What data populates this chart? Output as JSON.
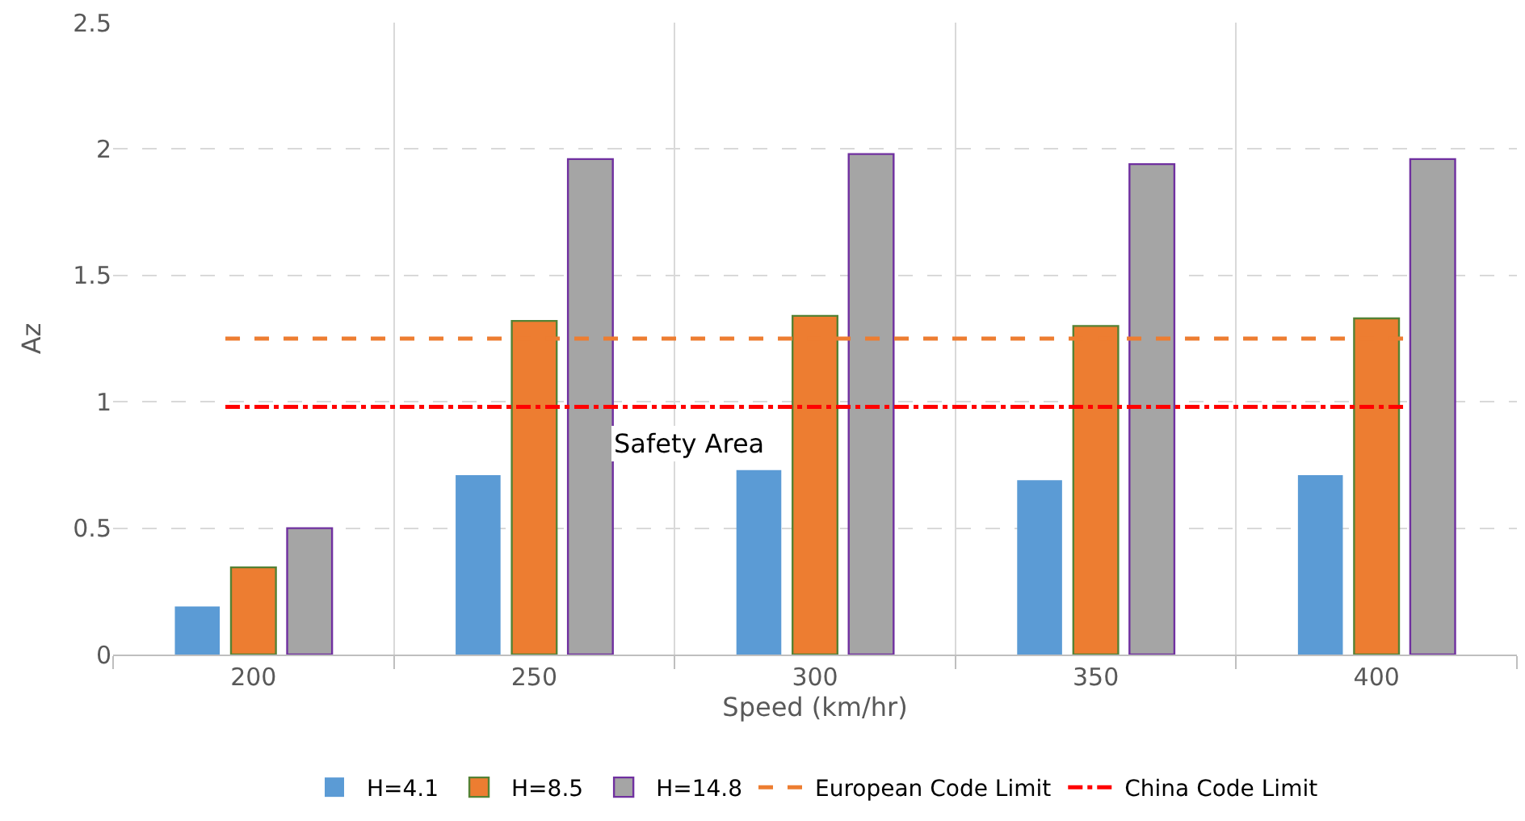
{
  "chart_data": {
    "type": "bar",
    "xlabel": "Speed (km/hr)",
    "ylabel": "Az",
    "categories": [
      "200",
      "250",
      "300",
      "350",
      "400"
    ],
    "series": [
      {
        "name": "H=4.1",
        "color": "#5b9bd5",
        "values": [
          0.19,
          0.71,
          0.73,
          0.69,
          0.71
        ]
      },
      {
        "name": "H=8.5",
        "color": "#ed7d31",
        "values": [
          0.345,
          1.32,
          1.34,
          1.3,
          1.33
        ]
      },
      {
        "name": "H=14.8",
        "color": "#a5a5a5",
        "values": [
          0.5,
          1.96,
          1.98,
          1.94,
          1.96
        ]
      }
    ],
    "ref_lines": [
      {
        "axis": "y",
        "value": 1.25,
        "label": "European Code Limit",
        "color": "#ed7d31",
        "line_style": "dashed"
      },
      {
        "axis": "y",
        "value": 0.98,
        "label": "China Code Limit",
        "color": "#ff0000",
        "line_style": "dashdot"
      }
    ],
    "annotations": [
      "Safety Area"
    ],
    "ylim": [
      0,
      2.5
    ],
    "yticks": [
      0,
      0.5,
      1,
      1.5,
      2,
      2.5
    ],
    "grid": true,
    "legend": "bottom"
  }
}
